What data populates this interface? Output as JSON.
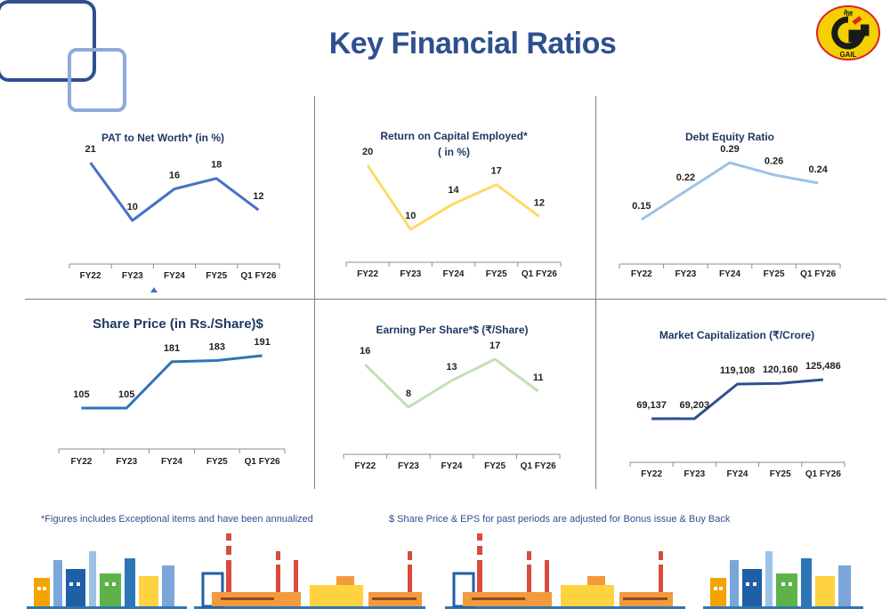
{
  "page_title": "Key Financial Ratios",
  "logo": {
    "text_hindi": "गेल",
    "text": "GAIL",
    "colors": {
      "red": "#d9242b",
      "yellow": "#f5d000",
      "dark": "#1a1a1a"
    }
  },
  "colors": {
    "blue": "#4472c4",
    "gold": "#ffd966",
    "lightblue": "#9dc3e6",
    "green": "#c5e0b4",
    "steel": "#2e75b6",
    "navy": "#2f4f8f",
    "title": "#1f3864"
  },
  "chart_data": [
    {
      "id": "pat",
      "type": "line",
      "title": [
        "PAT to Net Worth* (in %)"
      ],
      "categories": [
        "FY22",
        "FY23",
        "FY24",
        "FY25",
        "Q1 FY26"
      ],
      "values": [
        21,
        10,
        16,
        18,
        12
      ],
      "labels": [
        "21",
        "10",
        "16",
        "18",
        "12"
      ],
      "ylim": [
        0,
        25
      ],
      "color": "#4472c4"
    },
    {
      "id": "roce",
      "type": "line",
      "title": [
        "Return on Capital Employed*",
        "( in %)"
      ],
      "categories": [
        "FY22",
        "FY23",
        "FY24",
        "FY25",
        "Q1 FY26"
      ],
      "values": [
        20,
        10,
        14,
        17,
        12
      ],
      "labels": [
        "20",
        "10",
        "14",
        "17",
        "12"
      ],
      "ylim": [
        0,
        25
      ],
      "color": "#ffd966"
    },
    {
      "id": "de",
      "type": "line",
      "title": [
        "Debt Equity Ratio"
      ],
      "categories": [
        "FY22",
        "FY23",
        "FY24",
        "FY25",
        "Q1 FY26"
      ],
      "values": [
        0.15,
        0.22,
        0.29,
        0.26,
        0.24
      ],
      "labels": [
        "0.15",
        "0.22",
        "0.29",
        "0.26",
        "0.24"
      ],
      "ylim": [
        0,
        0.35
      ],
      "color": "#9dc3e6"
    },
    {
      "id": "share",
      "type": "line",
      "title": [
        "Share Price (in Rs./Share)$"
      ],
      "categories": [
        "FY22",
        "FY23",
        "FY24",
        "FY25",
        "Q1 FY26"
      ],
      "values": [
        105,
        105,
        181,
        183,
        191
      ],
      "labels": [
        "105",
        "105",
        "181",
        "183",
        "191"
      ],
      "ylim": [
        0,
        220
      ],
      "color": "#2e75b6"
    },
    {
      "id": "eps",
      "type": "line",
      "title": [
        "Earning Per Share*$ (₹/Share)"
      ],
      "categories": [
        "FY22",
        "FY23",
        "FY24",
        "FY25",
        "Q1 FY26"
      ],
      "values": [
        16,
        8,
        13,
        17,
        11
      ],
      "labels": [
        "16",
        "8",
        "13",
        "17",
        "11"
      ],
      "ylim": [
        0,
        20
      ],
      "color": "#c5e0b4"
    },
    {
      "id": "mcap",
      "type": "line",
      "title": [
        "Market Capitalization (₹/Crore)"
      ],
      "categories": [
        "FY22",
        "FY23",
        "FY24",
        "FY25",
        "Q1 FY26"
      ],
      "values": [
        69137,
        69203,
        119108,
        120160,
        125486
      ],
      "labels": [
        "69,137",
        "69,203",
        "119,108",
        "120,160",
        "125,486"
      ],
      "ylim": [
        0,
        150000
      ],
      "color": "#2f4f8f"
    }
  ],
  "footnotes": {
    "left": "*Figures includes Exceptional items and have been annualized",
    "right": "$ Share Price & EPS for past periods are adjusted for Bonus issue & Buy Back"
  }
}
